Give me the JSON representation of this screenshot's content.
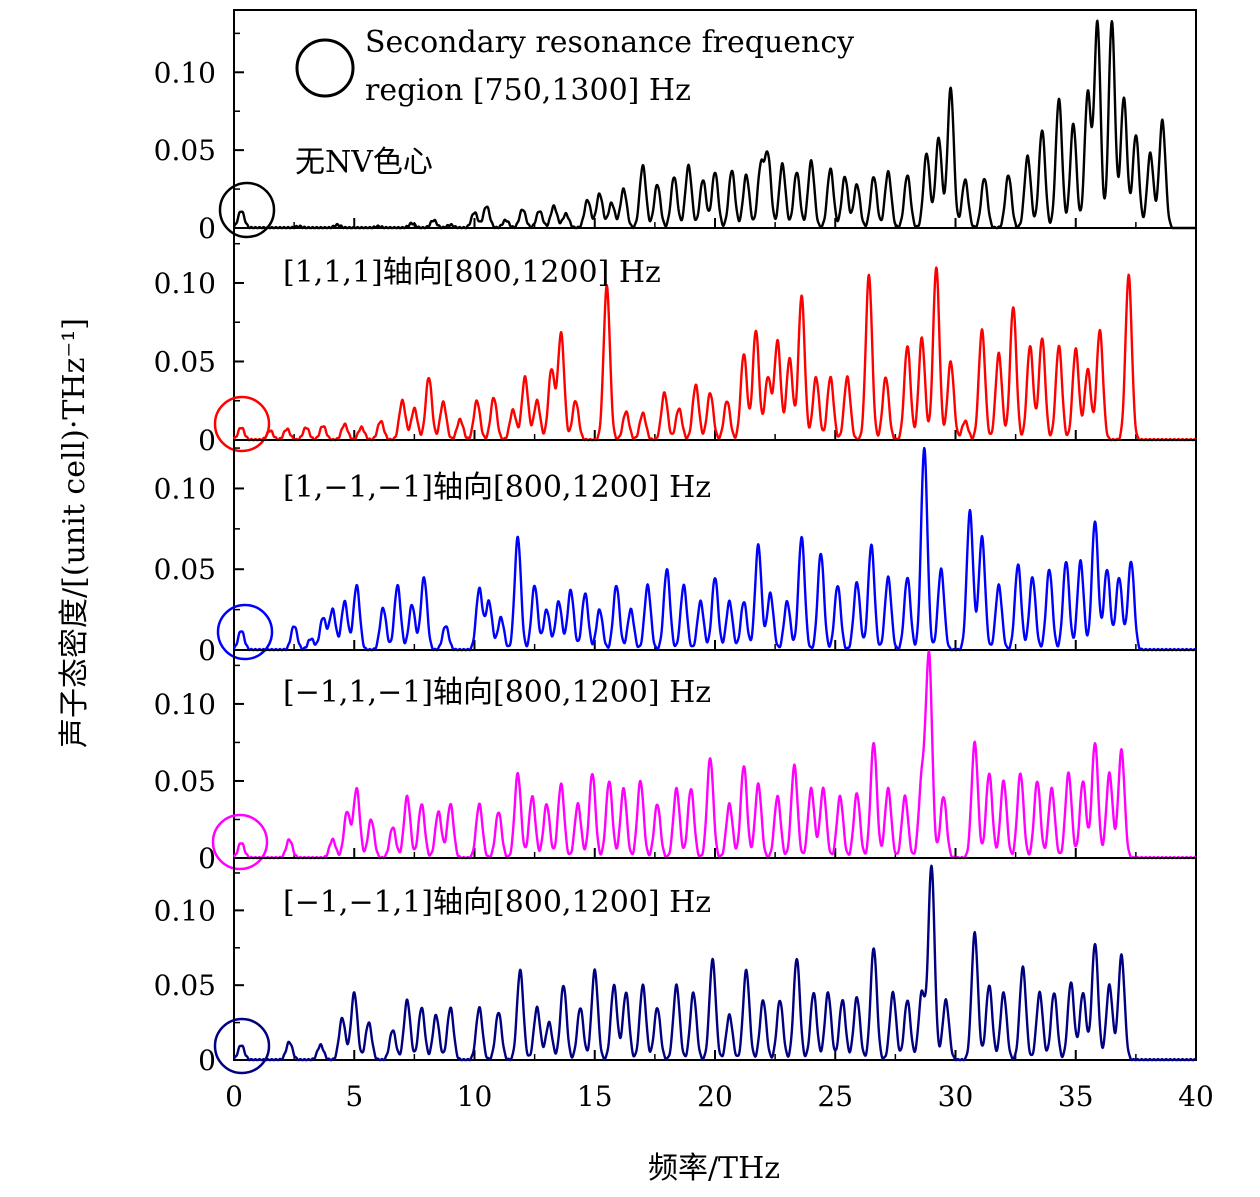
{
  "chart_data": {
    "type": "line",
    "xlabel": "频率/THz",
    "ylabel": "声子态密度/[(unit cell)·THz⁻¹]",
    "xlim": [
      0,
      40
    ],
    "xticks": [
      0,
      5,
      10,
      15,
      20,
      25,
      30,
      35,
      40
    ],
    "x_tick_labels": [
      "0",
      "5",
      "10",
      "15",
      "20",
      "25",
      "30",
      "35",
      "40"
    ],
    "y_tick_labels": [
      "0",
      "0.05",
      "0.10"
    ],
    "grid": false,
    "legend": {
      "placement": "top-left",
      "symbol": "circle",
      "line1": "Secondary resonance frequency",
      "line2": "region [750,1300] Hz"
    },
    "panels": [
      {
        "annotation": "无NV色心",
        "color": "#000000",
        "ylim": [
          0,
          0.14
        ],
        "yticks": [
          0,
          0.05,
          0.1
        ],
        "x_end": 39.0,
        "peaks": [
          [
            0.3,
            0.011
          ],
          [
            2.7,
            0.001
          ],
          [
            4.3,
            0.002
          ],
          [
            6.0,
            0.001
          ],
          [
            7.4,
            0.003
          ],
          [
            8.3,
            0.005
          ],
          [
            9.0,
            0.002
          ],
          [
            10.0,
            0.01
          ],
          [
            10.5,
            0.014
          ],
          [
            11.3,
            0.005
          ],
          [
            12.0,
            0.012
          ],
          [
            12.7,
            0.011
          ],
          [
            13.3,
            0.014
          ],
          [
            13.8,
            0.009
          ],
          [
            14.7,
            0.018
          ],
          [
            15.2,
            0.022
          ],
          [
            15.7,
            0.016
          ],
          [
            16.2,
            0.025
          ],
          [
            17.0,
            0.04
          ],
          [
            17.6,
            0.028
          ],
          [
            18.3,
            0.033
          ],
          [
            18.9,
            0.04
          ],
          [
            19.5,
            0.031
          ],
          [
            20.0,
            0.036
          ],
          [
            20.7,
            0.037
          ],
          [
            21.3,
            0.034
          ],
          [
            21.9,
            0.039
          ],
          [
            22.2,
            0.046
          ],
          [
            22.8,
            0.041
          ],
          [
            23.4,
            0.036
          ],
          [
            24.0,
            0.043
          ],
          [
            24.8,
            0.038
          ],
          [
            25.4,
            0.033
          ],
          [
            25.9,
            0.028
          ],
          [
            26.6,
            0.033
          ],
          [
            27.2,
            0.036
          ],
          [
            28.0,
            0.034
          ],
          [
            28.8,
            0.048
          ],
          [
            29.3,
            0.058
          ],
          [
            29.8,
            0.09
          ],
          [
            30.4,
            0.031
          ],
          [
            31.2,
            0.032
          ],
          [
            32.2,
            0.034
          ],
          [
            33.0,
            0.046
          ],
          [
            33.6,
            0.063
          ],
          [
            34.3,
            0.083
          ],
          [
            34.9,
            0.067
          ],
          [
            35.5,
            0.087
          ],
          [
            35.9,
            0.132
          ],
          [
            36.5,
            0.133
          ],
          [
            37.0,
            0.084
          ],
          [
            37.5,
            0.06
          ],
          [
            38.1,
            0.048
          ],
          [
            38.6,
            0.069
          ]
        ]
      },
      {
        "annotation": "[1,1,1]轴向[800,1200] Hz",
        "color": "#ff0000",
        "ylim": [
          0,
          0.135
        ],
        "yticks": [
          0,
          0.05,
          0.1
        ],
        "x_end": 40,
        "peaks": [
          [
            0.3,
            0.008
          ],
          [
            1.5,
            0.006
          ],
          [
            2.2,
            0.007
          ],
          [
            3.0,
            0.008
          ],
          [
            3.7,
            0.009
          ],
          [
            4.6,
            0.01
          ],
          [
            5.3,
            0.008
          ],
          [
            6.1,
            0.012
          ],
          [
            7.0,
            0.025
          ],
          [
            7.5,
            0.02
          ],
          [
            8.1,
            0.04
          ],
          [
            8.7,
            0.024
          ],
          [
            9.4,
            0.013
          ],
          [
            10.1,
            0.025
          ],
          [
            10.8,
            0.027
          ],
          [
            11.6,
            0.019
          ],
          [
            12.1,
            0.04
          ],
          [
            12.6,
            0.025
          ],
          [
            13.2,
            0.045
          ],
          [
            13.6,
            0.068
          ],
          [
            14.2,
            0.025
          ],
          [
            15.5,
            0.098
          ],
          [
            16.3,
            0.018
          ],
          [
            17.0,
            0.017
          ],
          [
            17.9,
            0.03
          ],
          [
            18.5,
            0.02
          ],
          [
            19.2,
            0.035
          ],
          [
            19.8,
            0.03
          ],
          [
            20.5,
            0.025
          ],
          [
            21.2,
            0.055
          ],
          [
            21.7,
            0.07
          ],
          [
            22.2,
            0.04
          ],
          [
            22.6,
            0.063
          ],
          [
            23.1,
            0.052
          ],
          [
            23.6,
            0.092
          ],
          [
            24.2,
            0.04
          ],
          [
            24.8,
            0.04
          ],
          [
            25.5,
            0.04
          ],
          [
            26.4,
            0.105
          ],
          [
            27.1,
            0.04
          ],
          [
            28.0,
            0.06
          ],
          [
            28.6,
            0.065
          ],
          [
            29.2,
            0.11
          ],
          [
            29.8,
            0.05
          ],
          [
            30.4,
            0.012
          ],
          [
            31.1,
            0.07
          ],
          [
            31.8,
            0.055
          ],
          [
            32.4,
            0.085
          ],
          [
            33.1,
            0.06
          ],
          [
            33.6,
            0.065
          ],
          [
            34.3,
            0.06
          ],
          [
            35.0,
            0.058
          ],
          [
            35.5,
            0.045
          ],
          [
            36.0,
            0.07
          ],
          [
            37.2,
            0.105
          ]
        ]
      },
      {
        "annotation": "[1,−1,−1]轴向[800,1200] Hz",
        "color": "#0000ff",
        "ylim": [
          0,
          0.13
        ],
        "yticks": [
          0,
          0.05,
          0.1
        ],
        "x_end": 40,
        "peaks": [
          [
            0.3,
            0.012
          ],
          [
            2.5,
            0.015
          ],
          [
            3.2,
            0.007
          ],
          [
            3.7,
            0.02
          ],
          [
            4.1,
            0.025
          ],
          [
            4.6,
            0.03
          ],
          [
            5.1,
            0.04
          ],
          [
            6.2,
            0.026
          ],
          [
            6.8,
            0.04
          ],
          [
            7.4,
            0.028
          ],
          [
            7.9,
            0.045
          ],
          [
            8.8,
            0.015
          ],
          [
            10.2,
            0.038
          ],
          [
            10.6,
            0.03
          ],
          [
            11.1,
            0.02
          ],
          [
            11.8,
            0.07
          ],
          [
            12.5,
            0.04
          ],
          [
            13.0,
            0.025
          ],
          [
            13.5,
            0.03
          ],
          [
            14.0,
            0.037
          ],
          [
            14.6,
            0.035
          ],
          [
            15.2,
            0.025
          ],
          [
            15.9,
            0.04
          ],
          [
            16.5,
            0.025
          ],
          [
            17.2,
            0.04
          ],
          [
            18.0,
            0.05
          ],
          [
            18.7,
            0.04
          ],
          [
            19.4,
            0.03
          ],
          [
            20.0,
            0.045
          ],
          [
            20.6,
            0.03
          ],
          [
            21.2,
            0.03
          ],
          [
            21.8,
            0.065
          ],
          [
            22.3,
            0.035
          ],
          [
            23.0,
            0.03
          ],
          [
            23.6,
            0.07
          ],
          [
            24.4,
            0.06
          ],
          [
            25.1,
            0.04
          ],
          [
            25.9,
            0.042
          ],
          [
            26.5,
            0.065
          ],
          [
            27.2,
            0.045
          ],
          [
            28.0,
            0.045
          ],
          [
            28.7,
            0.125
          ],
          [
            29.4,
            0.05
          ],
          [
            30.6,
            0.086
          ],
          [
            31.1,
            0.07
          ],
          [
            31.8,
            0.04
          ],
          [
            32.6,
            0.053
          ],
          [
            33.2,
            0.045
          ],
          [
            33.9,
            0.05
          ],
          [
            34.6,
            0.055
          ],
          [
            35.2,
            0.055
          ],
          [
            35.8,
            0.08
          ],
          [
            36.3,
            0.05
          ],
          [
            36.8,
            0.045
          ],
          [
            37.3,
            0.055
          ]
        ]
      },
      {
        "annotation": "[−1,1,−1]轴向[800,1200] Hz",
        "color": "#ff00ff",
        "ylim": [
          0,
          0.135
        ],
        "yticks": [
          0,
          0.05,
          0.1
        ],
        "x_end": 40,
        "peaks": [
          [
            0.3,
            0.01
          ],
          [
            2.3,
            0.012
          ],
          [
            4.1,
            0.012
          ],
          [
            4.7,
            0.03
          ],
          [
            5.1,
            0.045
          ],
          [
            5.7,
            0.025
          ],
          [
            6.6,
            0.02
          ],
          [
            7.2,
            0.04
          ],
          [
            7.8,
            0.035
          ],
          [
            8.5,
            0.03
          ],
          [
            9.0,
            0.035
          ],
          [
            10.2,
            0.035
          ],
          [
            11.0,
            0.03
          ],
          [
            11.8,
            0.055
          ],
          [
            12.4,
            0.04
          ],
          [
            13.0,
            0.035
          ],
          [
            13.6,
            0.048
          ],
          [
            14.3,
            0.035
          ],
          [
            14.9,
            0.055
          ],
          [
            15.6,
            0.05
          ],
          [
            16.2,
            0.045
          ],
          [
            16.9,
            0.05
          ],
          [
            17.6,
            0.035
          ],
          [
            18.4,
            0.045
          ],
          [
            19.0,
            0.045
          ],
          [
            19.8,
            0.065
          ],
          [
            20.6,
            0.035
          ],
          [
            21.2,
            0.06
          ],
          [
            21.8,
            0.048
          ],
          [
            22.6,
            0.04
          ],
          [
            23.3,
            0.06
          ],
          [
            24.0,
            0.045
          ],
          [
            24.5,
            0.045
          ],
          [
            25.2,
            0.04
          ],
          [
            25.9,
            0.042
          ],
          [
            26.6,
            0.075
          ],
          [
            27.2,
            0.045
          ],
          [
            27.9,
            0.04
          ],
          [
            28.6,
            0.05
          ],
          [
            28.9,
            0.13
          ],
          [
            29.5,
            0.04
          ],
          [
            30.8,
            0.075
          ],
          [
            31.4,
            0.055
          ],
          [
            32.0,
            0.05
          ],
          [
            32.7,
            0.055
          ],
          [
            33.4,
            0.05
          ],
          [
            34.0,
            0.045
          ],
          [
            34.7,
            0.055
          ],
          [
            35.3,
            0.05
          ],
          [
            35.8,
            0.075
          ],
          [
            36.4,
            0.055
          ],
          [
            36.9,
            0.07
          ]
        ]
      },
      {
        "annotation": "[−1,−1,1]轴向[800,1200] Hz",
        "color": "#000080",
        "ylim": [
          0,
          0.135
        ],
        "yticks": [
          0,
          0.05,
          0.1
        ],
        "x_end": 40,
        "peaks": [
          [
            0.3,
            0.01
          ],
          [
            2.3,
            0.012
          ],
          [
            3.6,
            0.01
          ],
          [
            4.5,
            0.028
          ],
          [
            5.0,
            0.045
          ],
          [
            5.6,
            0.025
          ],
          [
            6.6,
            0.02
          ],
          [
            7.2,
            0.04
          ],
          [
            7.8,
            0.035
          ],
          [
            8.4,
            0.03
          ],
          [
            9.0,
            0.035
          ],
          [
            10.2,
            0.035
          ],
          [
            11.0,
            0.032
          ],
          [
            11.9,
            0.06
          ],
          [
            12.6,
            0.035
          ],
          [
            13.1,
            0.025
          ],
          [
            13.7,
            0.05
          ],
          [
            14.4,
            0.035
          ],
          [
            15.0,
            0.06
          ],
          [
            15.8,
            0.05
          ],
          [
            16.3,
            0.045
          ],
          [
            17.0,
            0.05
          ],
          [
            17.6,
            0.035
          ],
          [
            18.4,
            0.05
          ],
          [
            19.1,
            0.045
          ],
          [
            19.9,
            0.067
          ],
          [
            20.6,
            0.03
          ],
          [
            21.3,
            0.06
          ],
          [
            22.0,
            0.04
          ],
          [
            22.7,
            0.04
          ],
          [
            23.4,
            0.068
          ],
          [
            24.1,
            0.045
          ],
          [
            24.7,
            0.045
          ],
          [
            25.3,
            0.04
          ],
          [
            25.9,
            0.042
          ],
          [
            26.6,
            0.075
          ],
          [
            27.4,
            0.045
          ],
          [
            28.0,
            0.04
          ],
          [
            28.6,
            0.045
          ],
          [
            29.0,
            0.13
          ],
          [
            29.6,
            0.04
          ],
          [
            30.8,
            0.085
          ],
          [
            31.4,
            0.05
          ],
          [
            32.0,
            0.045
          ],
          [
            32.8,
            0.062
          ],
          [
            33.5,
            0.045
          ],
          [
            34.1,
            0.045
          ],
          [
            34.8,
            0.052
          ],
          [
            35.3,
            0.045
          ],
          [
            35.8,
            0.078
          ],
          [
            36.4,
            0.05
          ],
          [
            36.9,
            0.07
          ]
        ]
      }
    ]
  }
}
